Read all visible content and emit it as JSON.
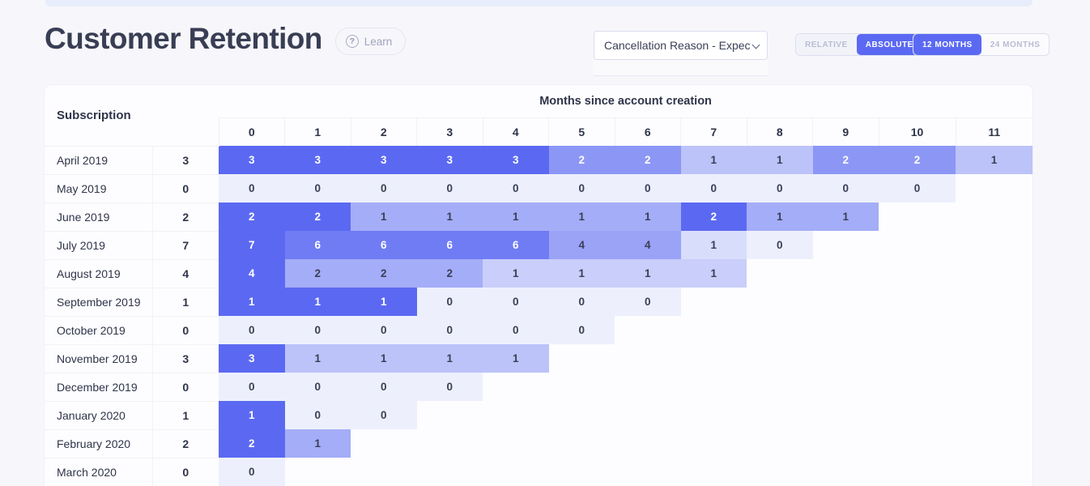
{
  "page": {
    "title": "Customer Retention",
    "learn_label": "Learn",
    "learn_icon_glyph": "?"
  },
  "controls": {
    "metric_select": {
      "value": "Cancellation Reason - Expectat",
      "icon": "chevron-down-icon"
    },
    "mode_toggle": {
      "options": [
        {
          "label": "RELATIVE",
          "active": false
        },
        {
          "label": "ABSOLUTE",
          "active": true
        }
      ]
    },
    "window_toggle": {
      "options": [
        {
          "label": "12 MONTHS",
          "active": true
        },
        {
          "label": "24 MONTHS",
          "active": false
        }
      ]
    }
  },
  "colors": {
    "accent": "#5B69F2",
    "cell_scale_low": "#EDF0FC",
    "cell_scale_high": "#5B69F2",
    "cell_text_dark": "#3A3F57",
    "cell_text_light": "#FFFFFF",
    "page_bg": "#F7F7FB",
    "top_strip": "#E7EDFB"
  },
  "chart_data": {
    "type": "heatmap",
    "row_header": "Subscription",
    "column_group_label": "Months since account creation",
    "columns": [
      "0",
      "1",
      "2",
      "3",
      "4",
      "5",
      "6",
      "7",
      "8",
      "9",
      "10",
      "11"
    ],
    "rows": [
      {
        "label": "April 2019",
        "count": 3,
        "values": [
          3,
          3,
          3,
          3,
          3,
          2,
          2,
          1,
          1,
          2,
          2,
          1
        ]
      },
      {
        "label": "May 2019",
        "count": 0,
        "values": [
          0,
          0,
          0,
          0,
          0,
          0,
          0,
          0,
          0,
          0,
          0
        ]
      },
      {
        "label": "June 2019",
        "count": 2,
        "values": [
          2,
          2,
          1,
          1,
          1,
          1,
          1,
          2,
          1,
          1
        ]
      },
      {
        "label": "July 2019",
        "count": 7,
        "values": [
          7,
          6,
          6,
          6,
          6,
          4,
          4,
          1,
          0
        ]
      },
      {
        "label": "August 2019",
        "count": 4,
        "values": [
          4,
          2,
          2,
          2,
          1,
          1,
          1,
          1
        ]
      },
      {
        "label": "September 2019",
        "count": 1,
        "values": [
          1,
          1,
          1,
          0,
          0,
          0,
          0
        ]
      },
      {
        "label": "October 2019",
        "count": 0,
        "values": [
          0,
          0,
          0,
          0,
          0,
          0
        ]
      },
      {
        "label": "November 2019",
        "count": 3,
        "values": [
          3,
          1,
          1,
          1,
          1
        ]
      },
      {
        "label": "December 2019",
        "count": 0,
        "values": [
          0,
          0,
          0,
          0
        ]
      },
      {
        "label": "January 2020",
        "count": 1,
        "values": [
          1,
          0,
          0
        ]
      },
      {
        "label": "February 2020",
        "count": 2,
        "values": [
          2,
          1
        ]
      },
      {
        "label": "March 2020",
        "count": 0,
        "values": [
          0
        ]
      }
    ]
  }
}
